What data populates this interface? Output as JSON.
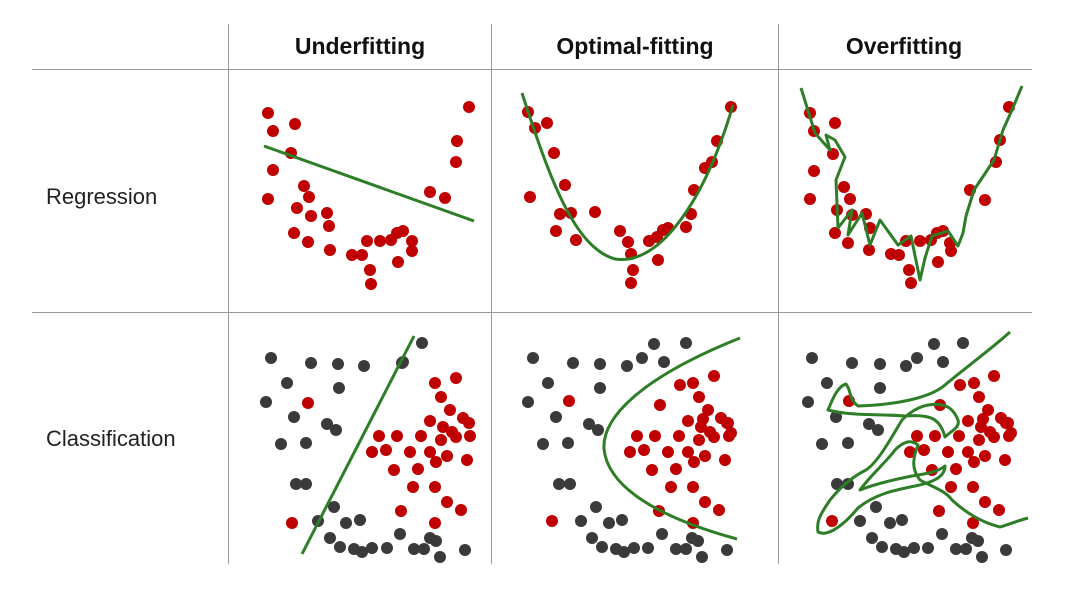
{
  "columns": [
    "Underfitting",
    "Optimal-fitting",
    "Overfitting"
  ],
  "rows": [
    "Regression",
    "Classification"
  ],
  "colors": {
    "class_a": "#c00000",
    "class_b": "#3a3a3a",
    "model": "#2e7d27",
    "grid": "#9a9a9a"
  }
}
